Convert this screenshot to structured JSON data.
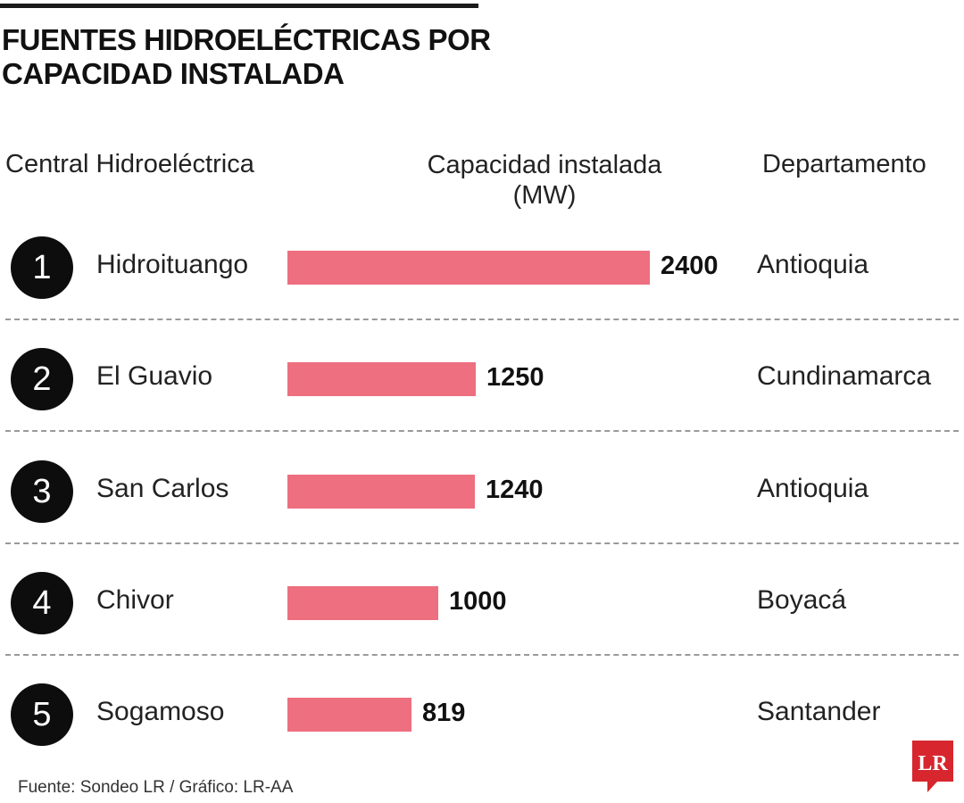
{
  "title_lines": [
    "FUENTES HIDROELÉCTRICAS POR",
    "CAPACIDAD INSTALADA"
  ],
  "headers": {
    "name": "Central Hidroeléctrica",
    "capacity_lines": [
      "Capacidad instalada",
      "(MW)"
    ],
    "department": "Departamento"
  },
  "source": "Fuente: Sondeo LR / Gráfico: LR-AA",
  "logo_text": "LR",
  "colors": {
    "bar": "#ed6f80",
    "badge": "#0d0d0d",
    "logo": "#d7262e"
  },
  "chart_data": {
    "type": "bar",
    "orientation": "horizontal",
    "title": "FUENTES HIDROELÉCTRICAS POR CAPACIDAD INSTALADA",
    "xlabel": "Capacidad instalada (MW)",
    "ylabel": "Central Hidroeléctrica",
    "ranks": [
      "1",
      "2",
      "3",
      "4",
      "5"
    ],
    "categories": [
      "Hidroituango",
      "El Guavio",
      "San Carlos",
      "Chivor",
      "Sogamoso"
    ],
    "values": [
      2400,
      1250,
      1240,
      1000,
      819
    ],
    "value_labels": [
      "2400",
      "1250",
      "1240",
      "1000",
      "819"
    ],
    "departments": [
      "Antioquia",
      "Cundinamarca",
      "Antioquia",
      "Boyacá",
      "Santander"
    ],
    "xlim": [
      0,
      2400
    ],
    "grid": false,
    "legend": "none"
  }
}
